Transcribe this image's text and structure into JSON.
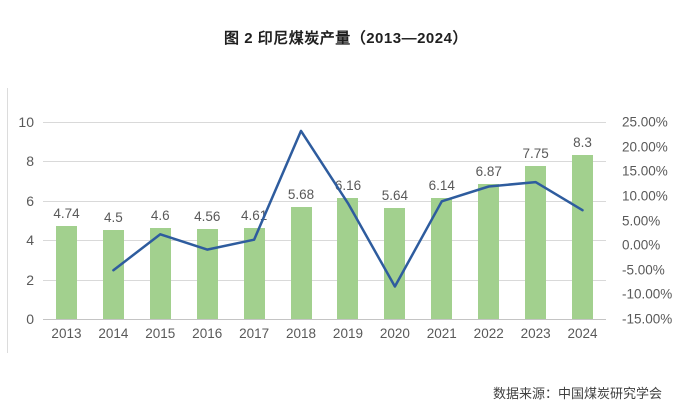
{
  "title": "图 2 印尼煤炭产量（2013—2024）",
  "source": "数据来源：中国煤炭研究学会",
  "colors": {
    "bar": "#a2d08e",
    "line": "#2e5c9e",
    "grid": "#d9d9d9",
    "axis_text": "#595959",
    "title_text": "#1f1f1f",
    "source_text": "#404040"
  },
  "chart_data": {
    "type": "bar+line combo",
    "title": "图 2 印尼煤炭产量（2013—2024）",
    "categories": [
      "2013",
      "2014",
      "2015",
      "2016",
      "2017",
      "2018",
      "2019",
      "2020",
      "2021",
      "2022",
      "2023",
      "2024"
    ],
    "series": [
      {
        "name": "production-bars",
        "type": "bar",
        "axis": "left",
        "values": [
          4.74,
          4.5,
          4.6,
          4.56,
          4.61,
          5.68,
          6.16,
          5.64,
          6.14,
          6.87,
          7.75,
          8.3
        ],
        "data_labels": [
          "4.74",
          "4.5",
          "4.6",
          "4.56",
          "4.61",
          "5.68",
          "6.16",
          "5.64",
          "6.14",
          "6.87",
          "7.75",
          "8.3"
        ]
      },
      {
        "name": "growth-rate-line",
        "type": "line",
        "axis": "right",
        "values": [
          null,
          -5.1,
          2.2,
          -0.9,
          1.1,
          23.2,
          8.5,
          -8.4,
          8.9,
          11.9,
          12.8,
          7.1
        ]
      }
    ],
    "left_axis": {
      "min": 0,
      "max": 10,
      "ticks": [
        "10",
        "8",
        "6",
        "4",
        "2",
        "0"
      ]
    },
    "right_axis": {
      "min": -15,
      "max": 25,
      "ticks": [
        "25.00%",
        "20.00%",
        "15.00%",
        "10.00%",
        "5.00%",
        "0.00%",
        "-5.00%",
        "-10.00%",
        "-15.00%"
      ]
    },
    "grid": "horizontal-on",
    "legend": "none",
    "xlabel": "",
    "ylabel": ""
  }
}
